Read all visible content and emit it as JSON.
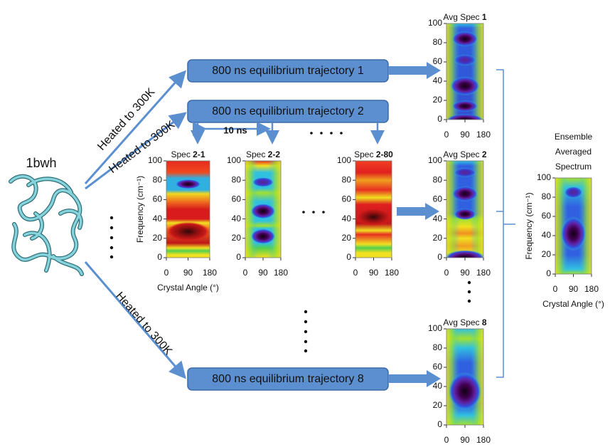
{
  "protein": {
    "label": "1bwh"
  },
  "heating": [
    "Heated to 300K",
    "Heated to 300K",
    "Heated to 300K"
  ],
  "trajectories": [
    "800 ns equilibrium trajectory 1",
    "800 ns equilibrium trajectory 2",
    "800 ns equilibrium trajectory 8"
  ],
  "interval": "10 ns",
  "panels": [
    {
      "title": "Spec",
      "number": "2-1",
      "yticks": [
        0,
        20,
        40,
        60,
        80,
        100
      ],
      "xticks": [
        0,
        90,
        180
      ],
      "ylabel": "Frequency (cm⁻¹)",
      "xlabel": "Crystal Angle (°)"
    },
    {
      "title": "Spec",
      "number": "2-2",
      "yticks": [
        0,
        20,
        40,
        60,
        80,
        100
      ],
      "xticks": [
        0,
        90,
        180
      ]
    },
    {
      "title": "Spec",
      "number": "2-80",
      "yticks": [
        0,
        20,
        40,
        60,
        80,
        100
      ],
      "xticks": [
        0,
        90,
        180
      ]
    },
    {
      "title": "Avg Spec",
      "number": "1",
      "yticks": [
        0,
        20,
        40,
        60,
        80,
        100
      ],
      "xticks": [
        0,
        90,
        180
      ]
    },
    {
      "title": "Avg Spec",
      "number": "2",
      "yticks": [
        0,
        20,
        40,
        60,
        80,
        100
      ],
      "xticks": [
        0,
        90,
        180
      ]
    },
    {
      "title": "Avg Spec",
      "number": "8",
      "yticks": [
        0,
        20,
        40,
        60,
        80,
        100
      ],
      "xticks": [
        0,
        90,
        180
      ]
    },
    {
      "title_lines": [
        "Ensemble",
        "Averaged",
        "Spectrum"
      ],
      "yticks": [
        0,
        20,
        40,
        60,
        80,
        100
      ],
      "xticks": [
        0,
        90,
        180
      ],
      "ylabel": "Frequency (cm⁻¹)",
      "xlabel": "Crystal Angle (°)"
    }
  ]
}
